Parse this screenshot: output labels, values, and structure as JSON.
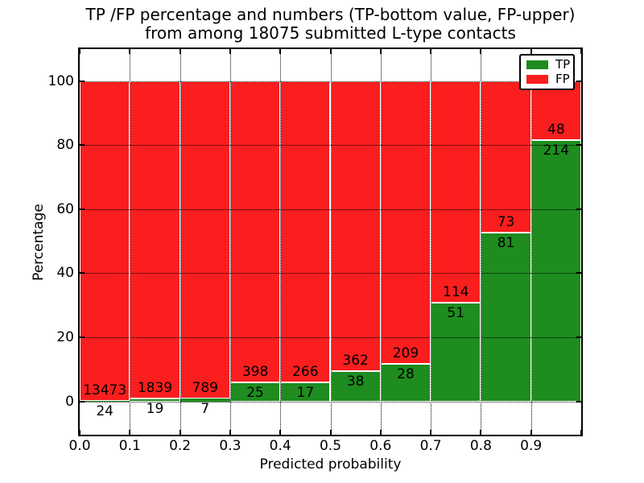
{
  "chart_data": {
    "type": "bar",
    "subtype": "stacked-percentage",
    "title_line1": "TP /FP percentage and numbers (TP-bottom value, FP-upper)",
    "title_line2": "from among 18075 submitted L-type contacts",
    "xlabel": "Predicted probability",
    "ylabel": "Percentage",
    "total_submitted": 18075,
    "categories": [
      "0.0-0.1",
      "0.1-0.2",
      "0.2-0.3",
      "0.3-0.4",
      "0.4-0.5",
      "0.5-0.6",
      "0.6-0.7",
      "0.7-0.8",
      "0.8-0.9",
      "0.9-1.0"
    ],
    "series": [
      {
        "name": "TP",
        "color": "#1e8c1e",
        "stack_position": "bottom",
        "values": [
          24,
          19,
          7,
          25,
          17,
          38,
          28,
          51,
          81,
          214
        ]
      },
      {
        "name": "FP",
        "color": "#fa1e1e",
        "stack_position": "top",
        "values": [
          13473,
          1839,
          789,
          398,
          266,
          362,
          209,
          114,
          73,
          48
        ]
      }
    ],
    "x_tick_labels": [
      "0.0",
      "0.1",
      "0.2",
      "0.3",
      "0.4",
      "0.5",
      "0.6",
      "0.7",
      "0.8",
      "0.9"
    ],
    "y_ticks": [
      0,
      20,
      40,
      60,
      80,
      100
    ],
    "y_tick_labels": [
      "0",
      "20",
      "40",
      "60",
      "80",
      "100"
    ],
    "xlim": [
      0.0,
      1.0
    ],
    "ylim": [
      -10.4,
      110
    ],
    "grid": true,
    "grid_style": "dotted",
    "bar_edge_color": "#ffffff",
    "legend_position": "upper right"
  }
}
